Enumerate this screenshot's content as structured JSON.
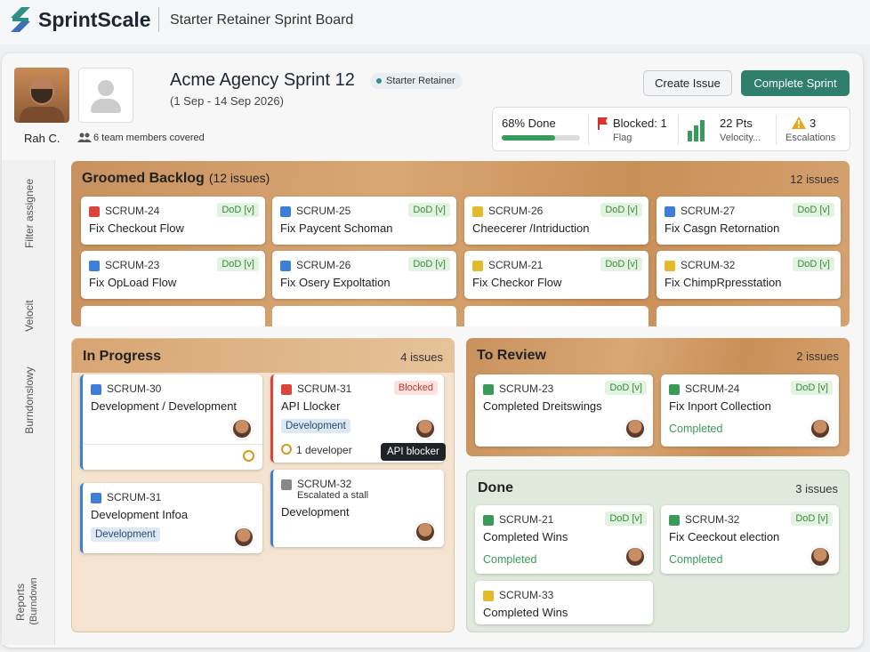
{
  "app": {
    "name": "SprintScale",
    "board_title": "Starter Retainer Sprint Board"
  },
  "profile": {
    "name": "Rah C.",
    "team": "6 team members covered"
  },
  "sprint": {
    "title": "Acme Agency Sprint 12",
    "badge": "Starter Retainer",
    "dates": "(1 Sep - 14 Sep 2026)"
  },
  "buttons": [
    "Create Issue",
    "Complete Sprint"
  ],
  "stats": [
    {
      "label": "68% Done",
      "progress": 68
    },
    {
      "label": "Blocked: 1",
      "sub": "Flag"
    },
    {
      "label": "22 Pts",
      "sub": "Velocity..."
    },
    {
      "label": "3",
      "sub": "Escalations"
    }
  ],
  "sidebar": [
    "Filter assignee",
    "Velocit",
    "Burndonslowy",
    "Reports",
    "(Burndown"
  ],
  "columns": [
    {
      "title": "Groomed Backlog",
      "subcount": "(12 issues)",
      "count": "12 issues",
      "cards": [
        {
          "key": "SCRUM-24",
          "icon": "bug",
          "title": "Fix Checkout Flow",
          "badge": "DoD [v]"
        },
        {
          "key": "SCRUM-25",
          "icon": "story",
          "title": "Fix Paycent Schoman",
          "badge": "DoD [v]"
        },
        {
          "key": "SCRUM-26",
          "icon": "task",
          "title": "Cheecerer /Intriduction",
          "badge": "DoD [v]"
        },
        {
          "key": "SCRUM-27",
          "icon": "story",
          "title": "Fix Casgn Retornation",
          "badge": "DoD [v]"
        },
        {
          "key": "SCRUM-23",
          "icon": "story",
          "title": "Fix OpLoad Flow",
          "badge": "DoD [v]"
        },
        {
          "key": "SCRUM-26",
          "icon": "story",
          "title": "Fix Osery Expoltation",
          "badge": "DoD [v]"
        },
        {
          "key": "SCRUM-21",
          "icon": "task",
          "title": "Fix Checkor Flow",
          "badge": "DoD [v]"
        },
        {
          "key": "SCRUM-32",
          "icon": "task",
          "title": "Fix ChimpRpresstation",
          "badge": "DoD [v]"
        }
      ]
    },
    {
      "title": "In Progress",
      "count": "4 issues",
      "cards": [
        {
          "key": "SCRUM-30",
          "icon": "story",
          "title": "Development / Development"
        },
        {
          "key": "SCRUM-31",
          "icon": "bug",
          "title": "API Llocker",
          "badge": "Blocked",
          "badge_style": "blocked",
          "tag": "Development",
          "footer": "1 developer",
          "tooltip": "API blocker"
        },
        {
          "key": "SCRUM-31",
          "icon": "story",
          "title": "Development Infoa",
          "tag": "Development"
        },
        {
          "key": "SCRUM-32",
          "icon": "escalation",
          "subtitle": "Escalated a stall",
          "title": "Development"
        }
      ]
    },
    {
      "title": "To Review",
      "count": "2 issues",
      "cards": [
        {
          "key": "SCRUM-23",
          "icon": "done",
          "title": "Completed Dreitswings",
          "badge": "DoD [v]"
        },
        {
          "key": "SCRUM-24",
          "icon": "done",
          "title": "Fix Inport Collection",
          "badge": "DoD [v]",
          "status": "Completed"
        }
      ]
    },
    {
      "title": "Done",
      "count": "3 issues",
      "cards": [
        {
          "key": "SCRUM-21",
          "icon": "done",
          "title": "Completed Wins",
          "badge": "DoD [v]",
          "status": "Completed"
        },
        {
          "key": "SCRUM-32",
          "icon": "done",
          "title": "Fix Ceeckout election",
          "badge": "DoD [v]",
          "status": "Completed"
        },
        {
          "key": "SCRUM-33",
          "icon": "task",
          "title": "Completed Wins"
        }
      ]
    }
  ]
}
